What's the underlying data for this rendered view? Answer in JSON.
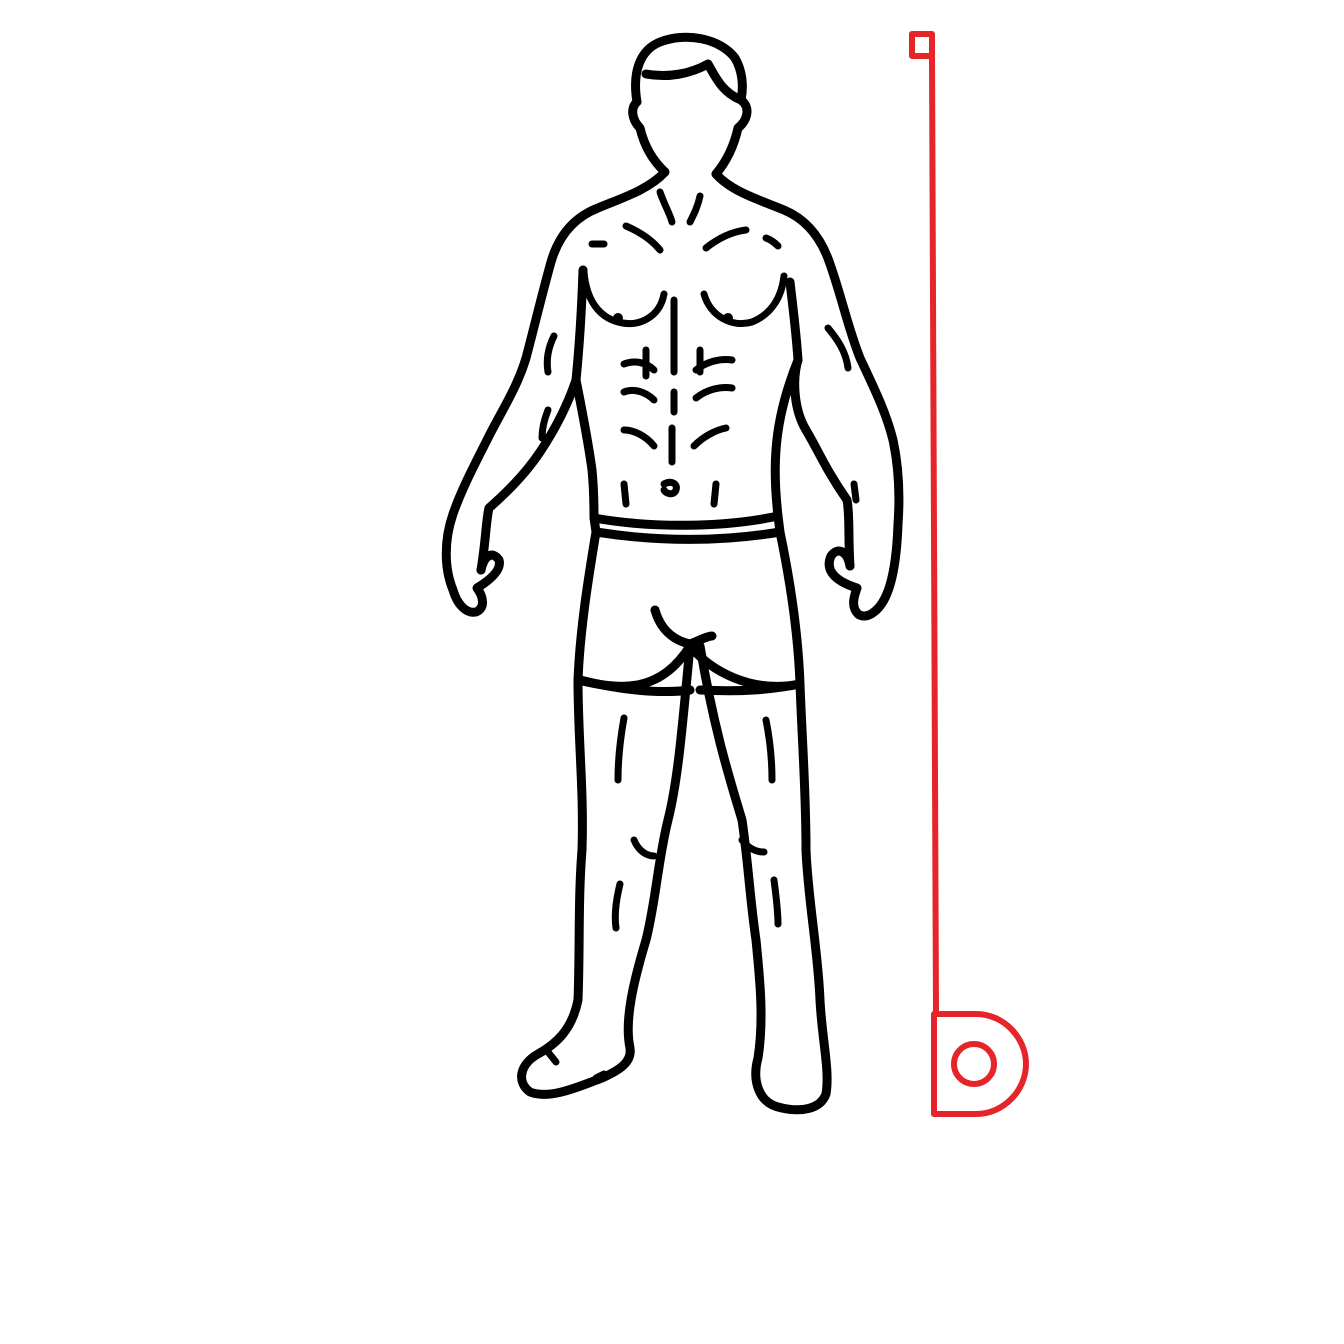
{
  "illustration": {
    "subject": "standing-man-icon",
    "measuring_tool": "tape-measure-icon",
    "colors": {
      "background": "#ffffff",
      "outline": "#000000",
      "tape": "#e5252a"
    }
  }
}
